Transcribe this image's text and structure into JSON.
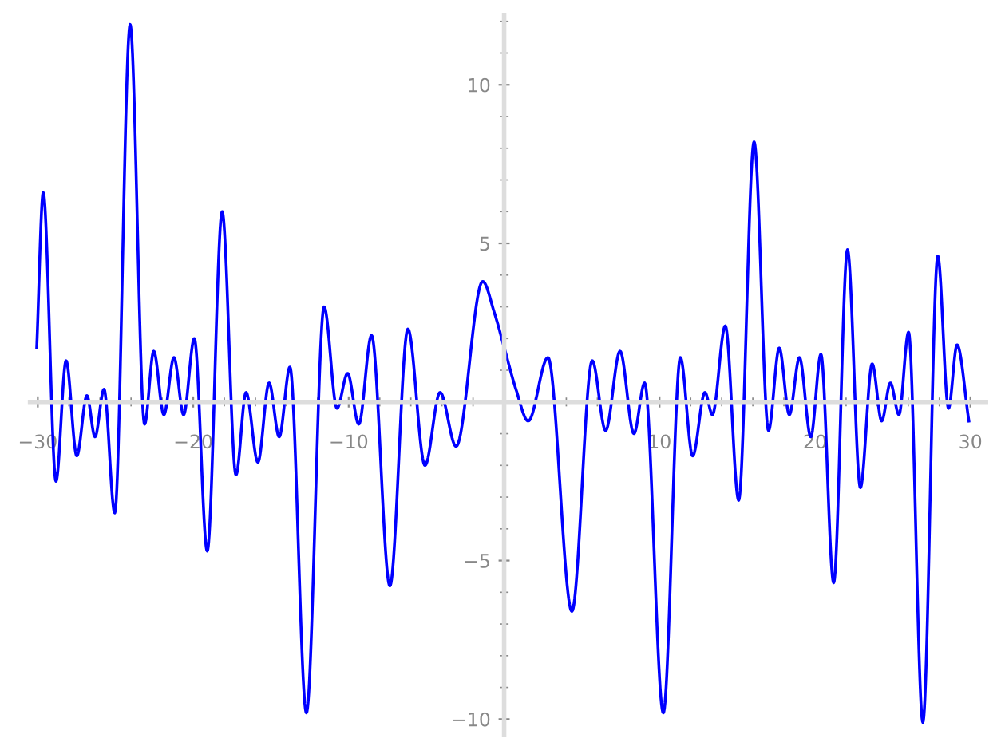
{
  "chart_data": {
    "type": "line",
    "x": [
      -30.07,
      -29.65,
      -28.83,
      -28.18,
      -27.49,
      -26.84,
      -26.32,
      -25.74,
      -25.05,
      -24.06,
      -23.13,
      -22.54,
      -21.89,
      -21.24,
      -20.62,
      -19.93,
      -19.1,
      -18.14,
      -17.25,
      -16.6,
      -15.84,
      -15.12,
      -14.47,
      -13.78,
      -12.72,
      -11.58,
      -10.75,
      -10.07,
      -9.35,
      -8.53,
      -7.35,
      -6.19,
      -5.09,
      -4.12,
      -3.09,
      -1.38,
      -0.62,
      0.07,
      0.76,
      1.55,
      2.82,
      4.36,
      5.67,
      6.53,
      7.46,
      8.35,
      9.04,
      10.24,
      11.34,
      12.13,
      12.92,
      13.4,
      14.23,
      15.09,
      16.08,
      17.01,
      17.7,
      18.35,
      19.0,
      19.73,
      20.38,
      21.2,
      22.09,
      22.92,
      23.68,
      24.29,
      24.85,
      25.4,
      26.02,
      26.94,
      27.9,
      28.59,
      29.14,
      29.9
    ],
    "series": [
      {
        "color": "#0000ff",
        "values": [
          1.7,
          6.6,
          -2.5,
          1.3,
          -1.7,
          0.2,
          -1.1,
          0.4,
          -3.5,
          11.9,
          -0.7,
          1.6,
          -0.4,
          1.4,
          -0.4,
          2.0,
          -4.7,
          6.0,
          -2.3,
          0.3,
          -1.9,
          0.6,
          -1.1,
          1.1,
          -9.8,
          3.0,
          -0.2,
          0.9,
          -0.7,
          2.1,
          -5.8,
          2.3,
          -2.0,
          0.3,
          -1.4,
          3.8,
          2.8,
          1.6,
          0.4,
          -0.6,
          1.4,
          -6.6,
          1.3,
          -0.9,
          1.6,
          -1.0,
          0.6,
          -9.8,
          1.4,
          -1.7,
          0.3,
          -0.4,
          2.4,
          -3.1,
          8.2,
          -0.9,
          1.7,
          -0.4,
          1.4,
          -1.1,
          1.5,
          -5.7,
          4.8,
          -2.7,
          1.2,
          -0.6,
          0.6,
          -0.4,
          2.2,
          -10.1,
          4.6,
          -0.2,
          1.8,
          -0.6
        ]
      }
    ],
    "xlim": [
      -30.5,
      31
    ],
    "ylim": [
      -10.5,
      12.2
    ],
    "xticks": [
      -30,
      {
        "value": -28,
        "label": null
      },
      {
        "value": -26,
        "label": null
      },
      {
        "value": -24,
        "label": null
      },
      {
        "value": -22,
        "label": null
      },
      -20,
      {
        "value": -18,
        "label": null
      },
      {
        "value": -16,
        "label": null
      },
      {
        "value": -14,
        "label": null
      },
      {
        "value": -12,
        "label": null
      },
      -10,
      {
        "value": -8,
        "label": null
      },
      {
        "value": -6,
        "label": null
      },
      {
        "value": -4,
        "label": null
      },
      {
        "value": -2,
        "label": null
      },
      {
        "value": 2,
        "label": null
      },
      {
        "value": 4,
        "label": null
      },
      {
        "value": 6,
        "label": null
      },
      {
        "value": 8,
        "label": null
      },
      10,
      {
        "value": 12,
        "label": null
      },
      {
        "value": 14,
        "label": null
      },
      {
        "value": 16,
        "label": null
      },
      {
        "value": 18,
        "label": null
      },
      20,
      {
        "value": 22,
        "label": null
      },
      {
        "value": 24,
        "label": null
      },
      {
        "value": 26,
        "label": null
      },
      {
        "value": 28,
        "label": null
      },
      30
    ],
    "yticks": [
      -10,
      {
        "value": -9,
        "label": null
      },
      {
        "value": -8,
        "label": null
      },
      {
        "value": -7,
        "label": null
      },
      {
        "value": -6,
        "label": null
      },
      -5,
      {
        "value": -4,
        "label": null
      },
      {
        "value": -3,
        "label": null
      },
      {
        "value": -2,
        "label": null
      },
      {
        "value": -1,
        "label": null
      },
      {
        "value": 1,
        "label": null
      },
      {
        "value": 2,
        "label": null
      },
      {
        "value": 3,
        "label": null
      },
      {
        "value": 4,
        "label": null
      },
      5,
      {
        "value": 6,
        "label": null
      },
      {
        "value": 7,
        "label": null
      },
      {
        "value": 8,
        "label": null
      },
      {
        "value": 9,
        "label": null
      },
      10,
      {
        "value": 11,
        "label": null
      },
      {
        "value": 12,
        "label": null
      }
    ],
    "grid": false,
    "line_style": "solid",
    "marker": "none"
  }
}
